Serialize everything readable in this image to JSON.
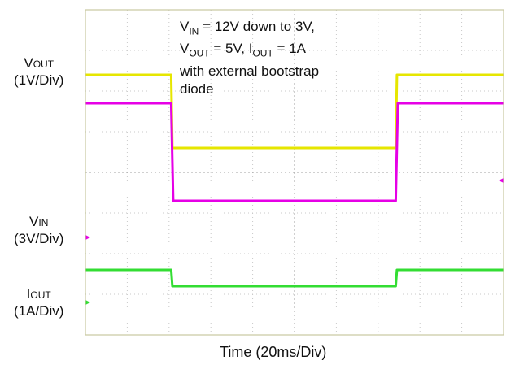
{
  "chart_data": {
    "type": "line",
    "xlabel": "Time (20ms/Div)",
    "x_range_div": [
      0,
      10
    ],
    "y_range_div": [
      -4,
      4
    ],
    "grid": true,
    "annotation": {
      "lines": [
        [
          {
            "main": "V",
            "sub": "IN"
          },
          {
            "main": " = 12V down to 3V,"
          }
        ],
        [
          {
            "main": "V",
            "sub": "OUT"
          },
          {
            "main": " = 5V, I"
          },
          {
            "main": "",
            "sub": "OUT"
          },
          {
            "main": " = 1A"
          }
        ],
        [
          {
            "main": "with external bootstrap"
          }
        ],
        [
          {
            "main": "diode"
          }
        ]
      ]
    },
    "channel_labels": [
      {
        "name": "V",
        "sub": "OUT",
        "scale": "(1V/Div)"
      },
      {
        "name": "V",
        "sub": "IN",
        "scale": "(3V/Div)"
      },
      {
        "name": "I",
        "sub": "OUT",
        "scale": "(1A/Div)"
      }
    ],
    "series": [
      {
        "color": "#e6e600",
        "x_div": [
          0,
          2.05,
          2.08,
          7.42,
          7.45,
          10
        ],
        "y_div": [
          2.4,
          2.4,
          0.6,
          0.6,
          2.4,
          2.4
        ]
      },
      {
        "color": "#e600e6",
        "x_div": [
          0,
          2.05,
          2.1,
          7.42,
          7.47,
          10
        ],
        "y_div": [
          1.7,
          1.7,
          -0.7,
          -0.7,
          1.7,
          1.7
        ]
      },
      {
        "color": "#33dd33",
        "x_div": [
          0,
          2.05,
          2.08,
          7.42,
          7.45,
          10
        ],
        "y_div": [
          -2.4,
          -2.4,
          -2.8,
          -2.8,
          -2.4,
          -2.4
        ]
      }
    ],
    "markers": [
      {
        "color": "#e600e6",
        "side": "left",
        "y_div": -1.6
      },
      {
        "color": "#33dd33",
        "side": "left",
        "y_div": -3.2
      },
      {
        "color": "#e600e6",
        "side": "right",
        "y_div": -0.2
      }
    ]
  }
}
